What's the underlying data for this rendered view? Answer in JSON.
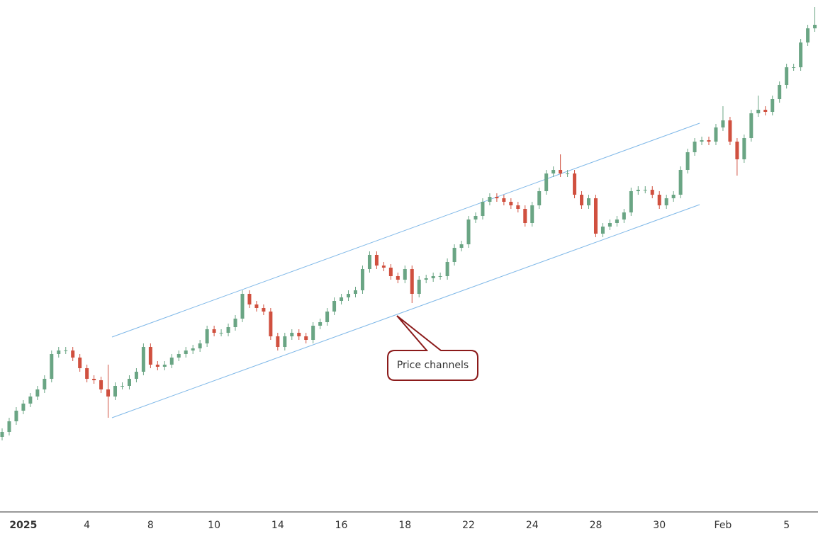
{
  "chart_data": {
    "type": "candlestick",
    "categories": [
      null,
      null,
      null,
      "2025",
      null,
      null,
      null,
      null,
      null,
      null,
      null,
      null,
      "4",
      null,
      null,
      null,
      null,
      null,
      null,
      null,
      null,
      "8",
      null,
      null,
      null,
      null,
      null,
      null,
      null,
      null,
      "10",
      null,
      null,
      null,
      null,
      null,
      null,
      null,
      null,
      "14",
      null,
      null,
      null,
      null,
      null,
      null,
      null,
      null,
      "16",
      null,
      null,
      null,
      null,
      null,
      null,
      null,
      null,
      "18",
      null,
      null,
      null,
      null,
      null,
      null,
      null,
      null,
      "22",
      null,
      null,
      null,
      null,
      null,
      null,
      null,
      null,
      "24",
      null,
      null,
      null,
      null,
      null,
      null,
      null,
      null,
      "28",
      null,
      null,
      null,
      null,
      null,
      null,
      null,
      null,
      "30",
      null,
      null,
      null,
      null,
      null,
      null,
      null,
      null,
      "Feb",
      null,
      null,
      null,
      null,
      null,
      null,
      null,
      null,
      "5",
      null,
      null,
      null,
      null
    ],
    "opens": [
      140,
      147,
      162,
      177,
      187,
      197,
      207,
      222,
      257,
      262,
      262,
      252,
      237,
      222,
      220,
      207,
      197,
      212,
      212,
      222,
      232,
      267,
      242,
      239,
      242,
      252,
      257,
      262,
      265,
      272,
      292,
      287,
      287,
      295,
      307,
      342,
      327,
      322,
      317,
      282,
      267,
      282,
      287,
      282,
      277,
      297,
      302,
      317,
      332,
      337,
      342,
      347,
      377,
      397,
      382,
      379,
      367,
      362,
      377,
      342,
      362,
      364,
      367,
      367,
      387,
      407,
      412,
      447,
      452,
      472,
      479,
      477,
      472,
      467,
      462,
      442,
      467,
      487,
      512,
      517,
      512,
      512,
      482,
      467,
      477,
      427,
      437,
      442,
      447,
      457,
      487,
      489,
      489,
      482,
      467,
      477,
      482,
      517,
      542,
      557,
      559,
      557,
      577,
      587,
      557,
      532,
      562,
      597,
      602,
      599,
      617,
      637,
      662,
      662,
      697,
      717
    ],
    "highs": [
      152,
      167,
      182,
      192,
      202,
      212,
      227,
      262,
      267,
      267,
      267,
      257,
      242,
      227,
      225,
      242,
      217,
      217,
      227,
      237,
      272,
      272,
      247,
      247,
      257,
      262,
      267,
      270,
      277,
      297,
      297,
      292,
      300,
      312,
      347,
      347,
      332,
      327,
      322,
      287,
      287,
      292,
      292,
      287,
      302,
      307,
      322,
      337,
      342,
      347,
      352,
      382,
      402,
      402,
      387,
      384,
      372,
      382,
      382,
      367,
      369,
      372,
      372,
      392,
      412,
      417,
      452,
      457,
      477,
      484,
      484,
      482,
      477,
      472,
      467,
      472,
      492,
      517,
      522,
      539,
      517,
      517,
      487,
      482,
      482,
      442,
      447,
      452,
      462,
      492,
      494,
      494,
      494,
      487,
      482,
      487,
      522,
      547,
      562,
      564,
      564,
      582,
      607,
      592,
      562,
      567,
      602,
      622,
      607,
      622,
      642,
      667,
      667,
      702,
      722,
      747
    ],
    "lows": [
      135,
      142,
      157,
      172,
      182,
      192,
      202,
      217,
      252,
      257,
      247,
      232,
      217,
      215,
      202,
      167,
      192,
      207,
      207,
      217,
      227,
      237,
      234,
      234,
      237,
      247,
      252,
      257,
      260,
      267,
      282,
      282,
      282,
      290,
      302,
      322,
      317,
      312,
      277,
      262,
      262,
      277,
      277,
      272,
      272,
      292,
      297,
      312,
      327,
      332,
      337,
      342,
      372,
      377,
      374,
      362,
      357,
      357,
      329,
      337,
      357,
      359,
      362,
      362,
      382,
      402,
      407,
      442,
      447,
      467,
      472,
      467,
      462,
      457,
      437,
      437,
      462,
      482,
      507,
      507,
      507,
      477,
      462,
      462,
      422,
      422,
      432,
      437,
      442,
      452,
      482,
      484,
      477,
      462,
      462,
      472,
      477,
      512,
      537,
      552,
      552,
      552,
      572,
      552,
      509,
      527,
      557,
      592,
      594,
      594,
      612,
      632,
      657,
      657,
      692,
      712
    ],
    "closes": [
      147,
      162,
      177,
      187,
      197,
      207,
      222,
      257,
      262,
      262,
      252,
      237,
      222,
      220,
      207,
      197,
      212,
      212,
      222,
      232,
      267,
      242,
      239,
      242,
      252,
      257,
      262,
      265,
      272,
      292,
      287,
      287,
      295,
      307,
      342,
      327,
      322,
      317,
      282,
      267,
      282,
      287,
      282,
      277,
      297,
      302,
      317,
      332,
      337,
      342,
      347,
      377,
      397,
      382,
      379,
      367,
      362,
      377,
      342,
      362,
      364,
      367,
      367,
      387,
      407,
      412,
      447,
      452,
      472,
      479,
      477,
      472,
      467,
      462,
      442,
      467,
      487,
      512,
      517,
      512,
      512,
      482,
      467,
      477,
      427,
      437,
      442,
      447,
      457,
      487,
      489,
      489,
      482,
      467,
      477,
      482,
      517,
      542,
      557,
      559,
      557,
      577,
      587,
      557,
      532,
      562,
      597,
      602,
      599,
      617,
      637,
      662,
      662,
      697,
      717,
      722
    ],
    "up_color": "#6aa584",
    "down_color": "#d0503f",
    "ylim": [
      34,
      757
    ],
    "annotation": "Price channels"
  }
}
